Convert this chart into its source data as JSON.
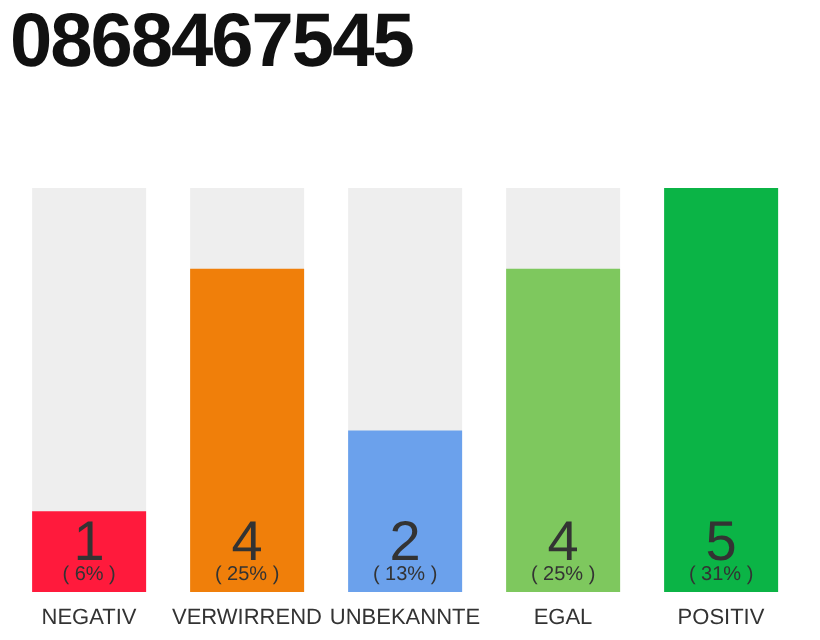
{
  "chart_data": {
    "type": "bar",
    "title": "0868467545",
    "categories": [
      "NEGATIV",
      "VERWIRREND",
      "UNBEKANNTE",
      "EGAL",
      "POSITIV"
    ],
    "values": [
      1,
      4,
      2,
      4,
      5
    ],
    "colors": [
      "#ff1a3c",
      "#f07f0a",
      "#6ba1ec",
      "#7ec85e",
      "#0bb446"
    ],
    "data_labels": true,
    "annotations": [
      "( 6% )",
      "( 25% )",
      "( 13% )",
      "( 25% )",
      "( 31% )"
    ]
  }
}
